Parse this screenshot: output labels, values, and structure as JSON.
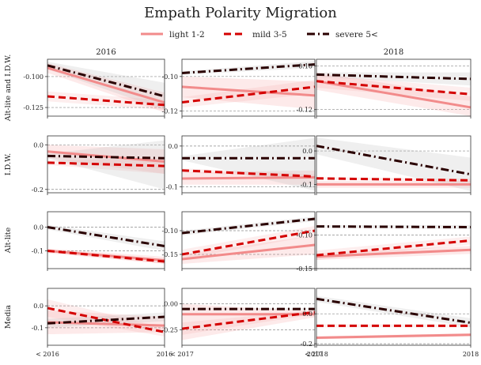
{
  "chart_data": {
    "type": "line",
    "title": "Empath Polarity Migration",
    "legend": {
      "placement": "top-center",
      "entries": [
        {
          "label": "light 1-2",
          "color": "#f28b8b",
          "dash": "solid"
        },
        {
          "label": "mild 3-5",
          "color": "#d40000",
          "dash": "dashed"
        },
        {
          "label": "severe 5<",
          "color": "#2a0000",
          "dash": "dashdot"
        }
      ]
    },
    "column_titles": [
      "2016",
      "",
      "2018"
    ],
    "row_labels": [
      "Alt-lite and I.D.W.",
      "I.D.W.",
      "Alt-lite",
      "Media"
    ],
    "x_tick_labels": [
      [
        "< 2016",
        "2016"
      ],
      [
        "< 2017",
        "2017"
      ],
      [
        "< 2018",
        "2018"
      ]
    ],
    "grid": "dashed horizontal at ticks",
    "panels": [
      [
        {
          "ylim": [
            -0.132,
            -0.086
          ],
          "yticks": [
            -0.1,
            -0.125
          ],
          "ytick_labels": [
            "-0.100",
            "-0.125"
          ],
          "series": [
            {
              "values": [
                -0.093,
                -0.121
              ],
              "band": [
                [
                  -0.089,
                  -0.097
                ],
                [
                  -0.113,
                  -0.129
                ]
              ]
            },
            {
              "values": [
                -0.116,
                -0.123
              ],
              "band": [
                [
                  -0.112,
                  -0.12
                ],
                [
                  -0.119,
                  -0.127
                ]
              ]
            },
            {
              "values": [
                -0.091,
                -0.116
              ],
              "band": [
                [
                  -0.088,
                  -0.094
                ],
                [
                  -0.105,
                  -0.127
                ]
              ]
            }
          ]
        },
        {
          "ylim": [
            -0.123,
            -0.09
          ],
          "yticks": [
            -0.1,
            -0.12
          ],
          "ytick_labels": [
            "-0.10",
            "-0.12"
          ],
          "series": [
            {
              "values": [
                -0.106,
                -0.111
              ],
              "band": [
                [
                  -0.1,
                  -0.112
                ],
                [
                  -0.103,
                  -0.119
                ]
              ]
            },
            {
              "values": [
                -0.115,
                -0.106
              ],
              "band": [
                [
                  -0.112,
                  -0.118
                ],
                [
                  -0.102,
                  -0.11
                ]
              ]
            },
            {
              "values": [
                -0.098,
                -0.093
              ],
              "band": [
                [
                  -0.097,
                  -0.099
                ],
                [
                  -0.091,
                  -0.095
                ]
              ]
            }
          ]
        },
        {
          "ylim": [
            -0.123,
            -0.097
          ],
          "yticks": [
            -0.1,
            -0.12
          ],
          "ytick_labels": [
            "-0.10",
            "-0.12"
          ],
          "series": [
            {
              "values": [
                -0.107,
                -0.119
              ],
              "band": [
                [
                  -0.103,
                  -0.111
                ],
                [
                  -0.114,
                  -0.123
                ]
              ]
            },
            {
              "values": [
                -0.107,
                -0.113
              ],
              "band": [
                [
                  -0.104,
                  -0.11
                ],
                [
                  -0.11,
                  -0.116
                ]
              ]
            },
            {
              "values": [
                -0.104,
                -0.106
              ],
              "band": [
                [
                  -0.103,
                  -0.105
                ],
                [
                  -0.103,
                  -0.109
                ]
              ]
            }
          ]
        }
      ],
      [
        {
          "ylim": [
            -0.215,
            0.04
          ],
          "yticks": [
            0.0,
            -0.2
          ],
          "ytick_labels": [
            "0.0",
            "-0.2"
          ],
          "series": [
            {
              "values": [
                -0.03,
                -0.075
              ],
              "band": [
                [
                  0.0,
                  -0.06
                ],
                [
                  -0.02,
                  -0.13
                ]
              ]
            },
            {
              "values": [
                -0.08,
                -0.095
              ],
              "band": [
                [
                  -0.07,
                  -0.09
                ],
                [
                  -0.06,
                  -0.13
                ]
              ]
            },
            {
              "values": [
                -0.05,
                -0.06
              ],
              "band": [
                [
                  -0.04,
                  -0.06
                ],
                [
                  0.02,
                  -0.2
                ]
              ]
            }
          ]
        },
        {
          "ylim": [
            -0.115,
            0.025
          ],
          "yticks": [
            0.0,
            -0.1
          ],
          "ytick_labels": [
            "0.0",
            "-0.1"
          ],
          "series": [
            {
              "values": [
                -0.08,
                -0.077
              ],
              "band": [
                [
                  -0.065,
                  -0.095
                ],
                [
                  -0.06,
                  -0.095
                ]
              ]
            },
            {
              "values": [
                -0.06,
                -0.075
              ],
              "band": [
                [
                  -0.055,
                  -0.065
                ],
                [
                  -0.07,
                  -0.08
                ]
              ]
            },
            {
              "values": [
                -0.03,
                -0.03
              ],
              "band": [
                [
                  -0.025,
                  -0.035
                ],
                [
                  0.02,
                  -0.11
                ]
              ]
            }
          ]
        },
        {
          "ylim": [
            -0.125,
            0.045
          ],
          "yticks": [
            0.0,
            -0.1
          ],
          "ytick_labels": [
            "0.0",
            "-0.1"
          ],
          "series": [
            {
              "values": [
                -0.1,
                -0.1
              ],
              "band": [
                [
                  -0.09,
                  -0.11
                ],
                [
                  -0.09,
                  -0.11
                ]
              ]
            },
            {
              "values": [
                -0.082,
                -0.088
              ],
              "band": [
                [
                  -0.078,
                  -0.086
                ],
                [
                  -0.083,
                  -0.093
                ]
              ]
            },
            {
              "values": [
                0.015,
                -0.07
              ],
              "band": [
                [
                  0.04,
                  -0.01
                ],
                [
                  -0.02,
                  -0.12
                ]
              ]
            }
          ]
        }
      ],
      [
        {
          "ylim": [
            -0.175,
            0.065
          ],
          "yticks": [
            0.0,
            -0.1
          ],
          "ytick_labels": [
            "0.0",
            "-0.1"
          ],
          "series": [
            {
              "values": [
                -0.1,
                -0.14
              ],
              "band": [
                [
                  -0.09,
                  -0.11
                ],
                [
                  -0.125,
                  -0.155
                ]
              ]
            },
            {
              "values": [
                -0.1,
                -0.145
              ],
              "band": [
                [
                  -0.095,
                  -0.105
                ],
                [
                  -0.135,
                  -0.155
                ]
              ]
            },
            {
              "values": [
                0.0,
                -0.08
              ],
              "band": [
                [
                  0.01,
                  -0.01
                ],
                [
                  -0.06,
                  -0.1
                ]
              ]
            }
          ]
        },
        {
          "ylim": [
            -0.18,
            -0.06
          ],
          "yticks": [
            -0.1,
            -0.15
          ],
          "ytick_labels": [
            "-0.10",
            "-0.15"
          ],
          "series": [
            {
              "values": [
                -0.16,
                -0.13
              ],
              "band": [
                [
                  -0.15,
                  -0.17
                ],
                [
                  -0.11,
                  -0.15
                ]
              ]
            },
            {
              "values": [
                -0.15,
                -0.1
              ],
              "band": [
                [
                  -0.14,
                  -0.16
                ],
                [
                  -0.09,
                  -0.11
                ]
              ]
            },
            {
              "values": [
                -0.105,
                -0.075
              ],
              "band": [
                [
                  -0.1,
                  -0.11
                ],
                [
                  -0.07,
                  -0.08
                ]
              ]
            }
          ]
        },
        {
          "ylim": [
            -0.15,
            -0.065
          ],
          "yticks": [
            -0.1,
            -0.15
          ],
          "ytick_labels": [
            "-0.10",
            "-0.15"
          ],
          "series": [
            {
              "values": [
                -0.132,
                -0.122
              ],
              "band": [
                [
                  -0.127,
                  -0.137
                ],
                [
                  -0.116,
                  -0.128
                ]
              ]
            },
            {
              "values": [
                -0.13,
                -0.108
              ],
              "band": [
                [
                  -0.123,
                  -0.137
                ],
                [
                  -0.102,
                  -0.114
                ]
              ]
            },
            {
              "values": [
                -0.087,
                -0.088
              ],
              "band": [
                [
                  -0.085,
                  -0.089
                ],
                [
                  -0.085,
                  -0.091
                ]
              ]
            }
          ]
        }
      ],
      [
        {
          "ylim": [
            -0.18,
            0.08
          ],
          "yticks": [
            0.0,
            -0.1
          ],
          "ytick_labels": [
            "0.0",
            "-0.1"
          ],
          "series": [
            {
              "values": [
                -0.075,
                -0.09
              ],
              "band": [
                [
                  -0.02,
                  -0.13
                ],
                [
                  -0.05,
                  -0.12
                ]
              ]
            },
            {
              "values": [
                -0.01,
                -0.12
              ],
              "band": [
                [
                  0.03,
                  -0.05
                ],
                [
                  -0.1,
                  -0.14
                ]
              ]
            },
            {
              "values": [
                -0.08,
                -0.05
              ],
              "band": [
                [
                  -0.06,
                  -0.1
                ],
                [
                  -0.03,
                  -0.07
                ]
              ]
            }
          ]
        },
        {
          "ylim": [
            -0.4,
            0.15
          ],
          "yticks": [
            0.0,
            -0.25
          ],
          "ytick_labels": [
            "0.00",
            "-0.25"
          ],
          "series": [
            {
              "values": [
                -0.1,
                -0.1
              ],
              "band": [
                [
                  0.0,
                  -0.35
                ],
                [
                  -0.07,
                  -0.13
                ]
              ]
            },
            {
              "values": [
                -0.24,
                -0.08
              ],
              "band": [
                [
                  -0.18,
                  -0.3
                ],
                [
                  -0.06,
                  -0.1
                ]
              ]
            },
            {
              "values": [
                -0.05,
                -0.05
              ],
              "band": [
                [
                  -0.04,
                  -0.06
                ],
                [
                  -0.04,
                  -0.06
                ]
              ]
            }
          ]
        },
        {
          "ylim": [
            -0.21,
            0.17
          ],
          "yticks": [
            0.0,
            -0.2
          ],
          "ytick_labels": [
            "0.0",
            "-0.2"
          ],
          "series": [
            {
              "values": [
                -0.16,
                -0.14
              ],
              "band": [
                [
                  -0.15,
                  -0.17
                ],
                [
                  -0.13,
                  -0.15
                ]
              ]
            },
            {
              "values": [
                -0.08,
                -0.08
              ],
              "band": [
                [
                  -0.07,
                  -0.09
                ],
                [
                  -0.07,
                  -0.09
                ]
              ]
            },
            {
              "values": [
                0.1,
                -0.06
              ],
              "band": [
                [
                  0.12,
                  0.08
                ],
                [
                  -0.03,
                  -0.09
                ]
              ]
            }
          ]
        }
      ]
    ]
  }
}
